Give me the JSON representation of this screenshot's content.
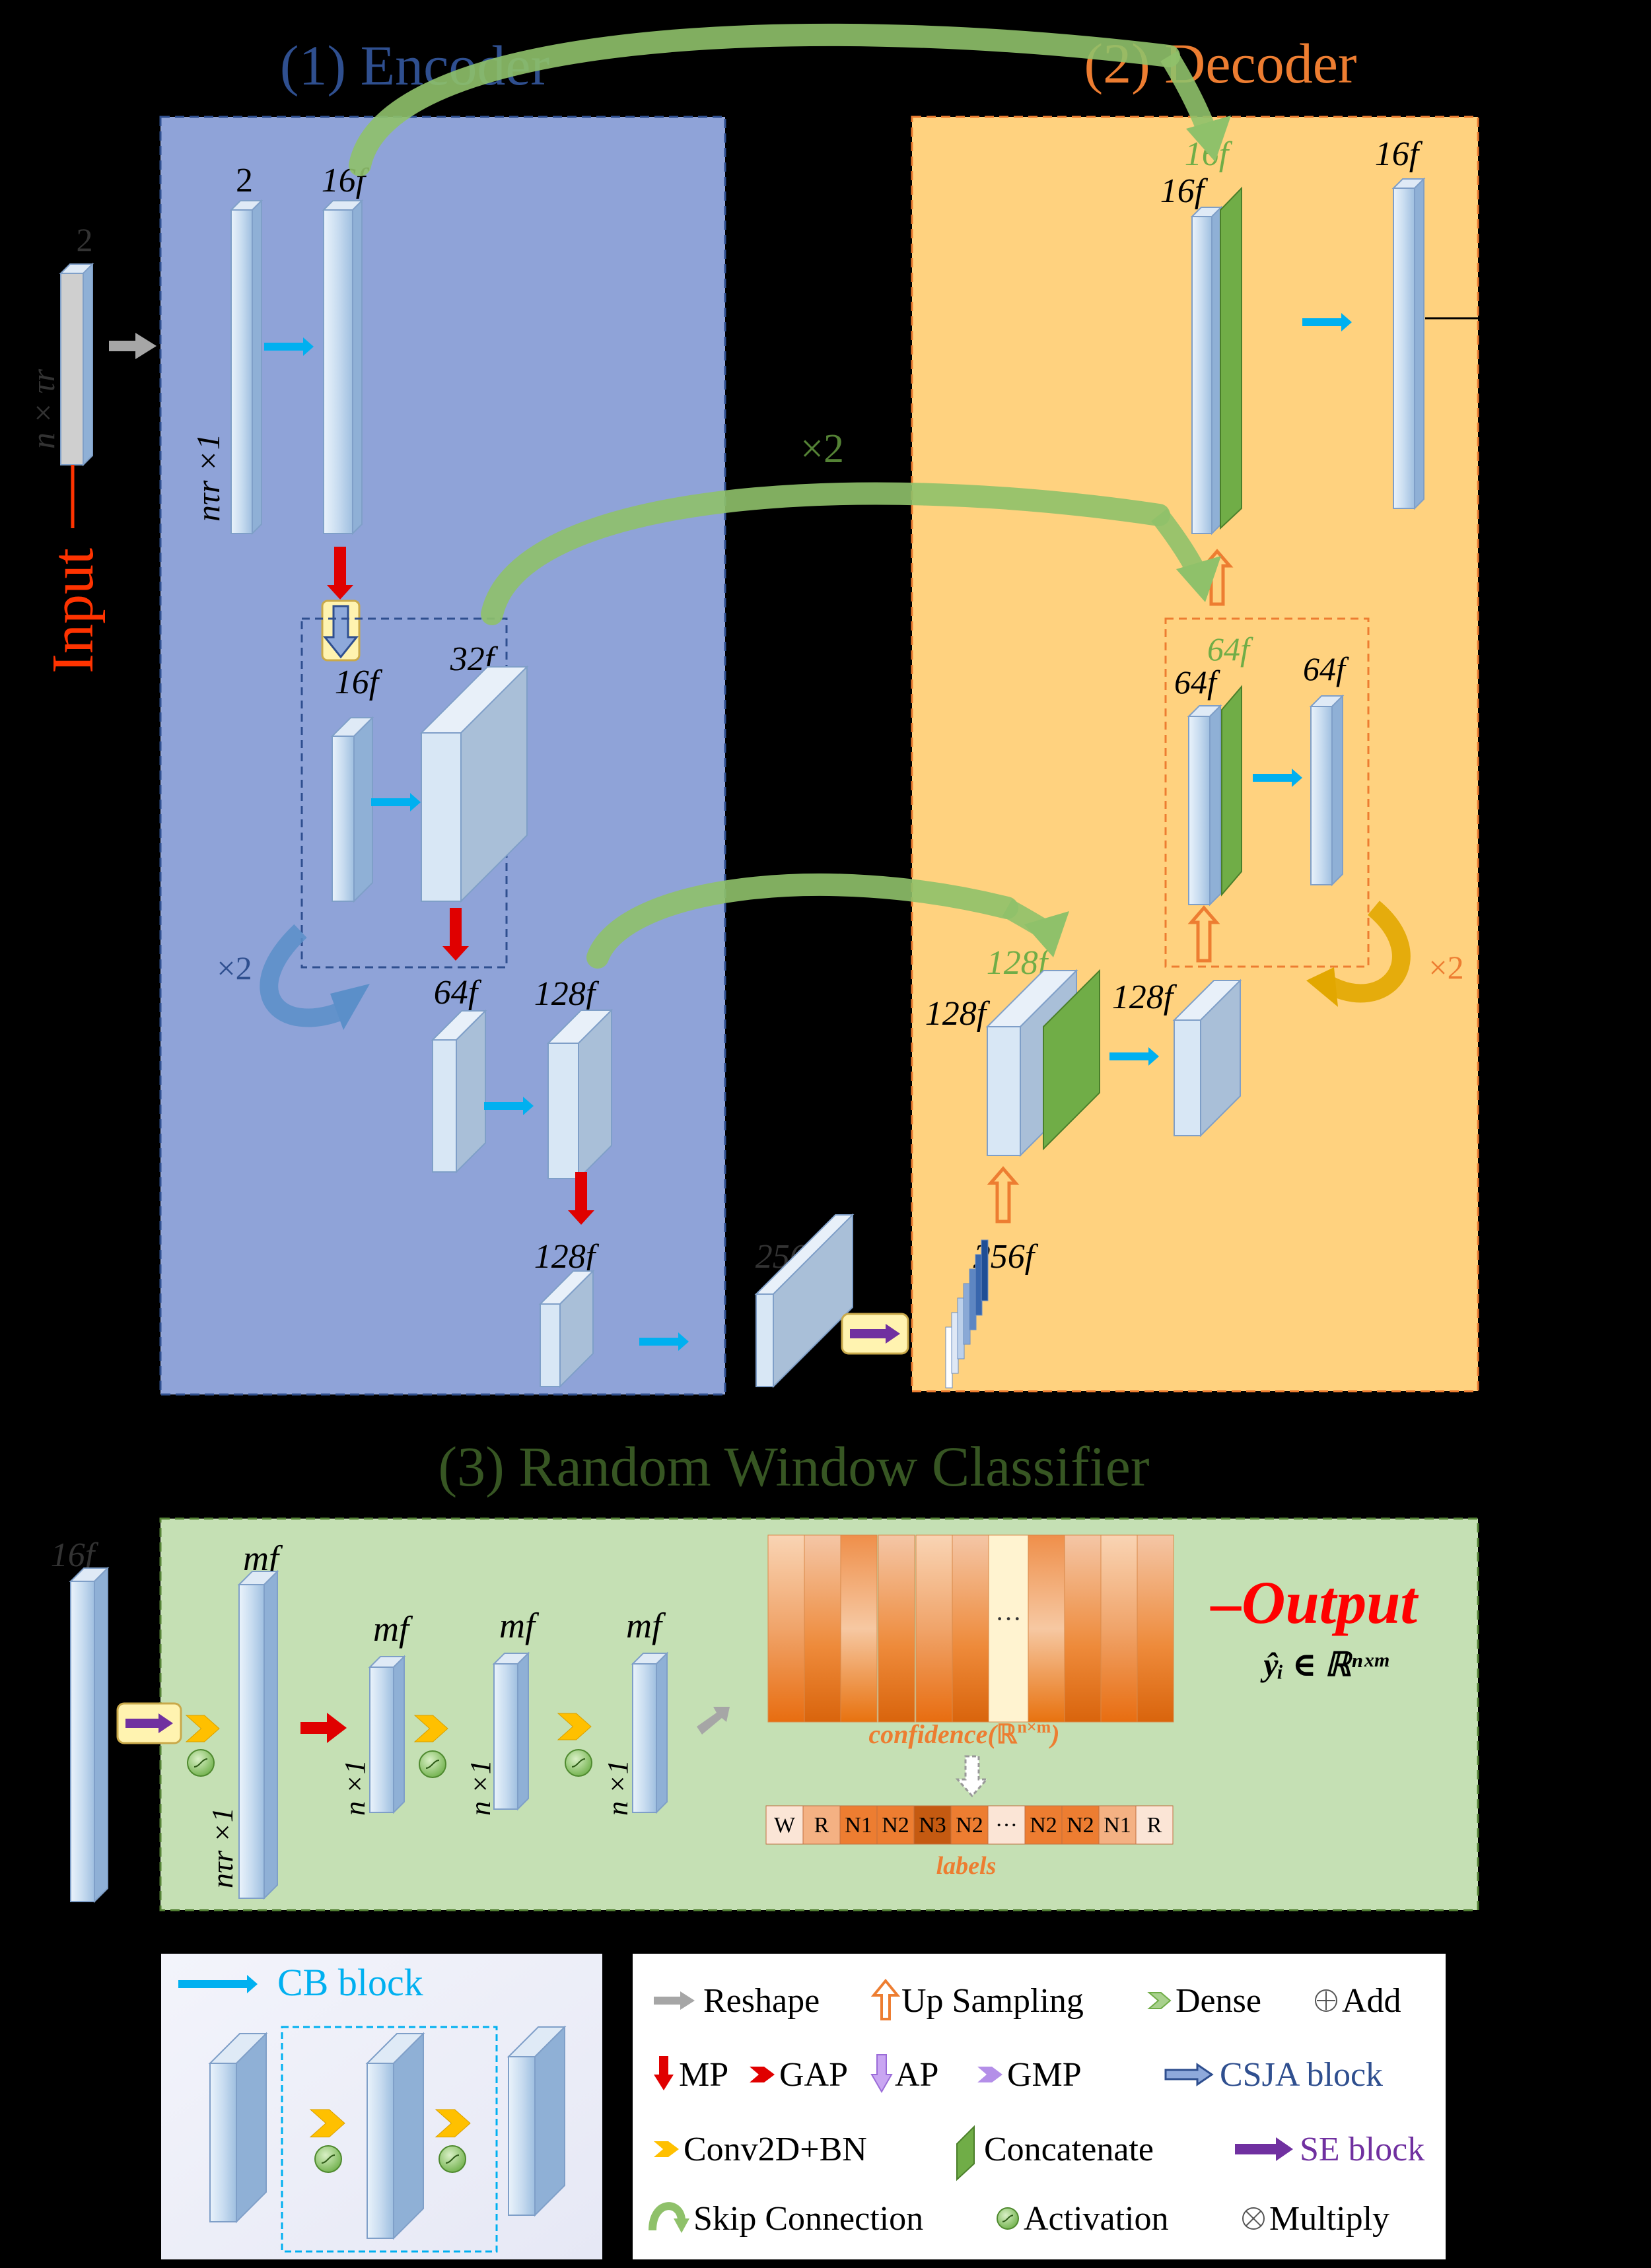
{
  "sections": {
    "encoder_title": "(1) Encoder",
    "decoder_title": "(2) Decoder",
    "classifier_title": "(3) Random Window Classifier"
  },
  "colors": {
    "encoder_bg": "#8fa3d8",
    "decoder_bg": "#ffd27f",
    "classifier_bg": "#c5e0b4",
    "encoder_title": "#2f4f8f",
    "decoder_title": "#ed7d31",
    "classifier_title": "#375623",
    "input_label": "#ff3300",
    "output_label": "#ff0000",
    "skip_arrow": "#8fc16a",
    "cb_arrow": "#00b0f0",
    "mp_arrow": "#e00000",
    "up_arrow": "#ed7d31",
    "se_arrow": "#7030a0",
    "concat": "#70ad47"
  },
  "input": {
    "label": "Input",
    "channels": "2",
    "shape": "n × τr"
  },
  "encoder": {
    "l1_ch": "2",
    "l1_shape": "nτr ×1",
    "l2_ch": "16f",
    "csja_in": "16f",
    "csja_out": "32f",
    "repeat": "×2",
    "l3_ch": "64f",
    "l3_out": "128f",
    "l4_ch": "128f",
    "bottleneck": "256f"
  },
  "decoder": {
    "skip_top": "16f",
    "up1_ch": "16f",
    "out1_ch": "16f",
    "skip_repeat": "×2",
    "skip_mid": "64f",
    "up2_ch": "64f",
    "out2_ch": "64f",
    "repeat": "×2",
    "skip_low": "128f",
    "up3_ch": "128f",
    "out3_ch": "128f",
    "se_out": "256f"
  },
  "classifier": {
    "input_ch": "16f",
    "b1_ch": "mf",
    "b1_shape": "nτr ×1",
    "b2_ch": "mf",
    "b3_ch": "mf",
    "b4_ch": "mf",
    "small_shape": "n ×1",
    "ellipsis": "···",
    "confidence_label": "confidence(ℝ^{n×m})",
    "confidence_text": "confidence(",
    "confidence_sup": "n×m",
    "labels_title": "labels",
    "labels": [
      "W",
      "R",
      "N1",
      "N2",
      "N3",
      "N2",
      "···",
      "N2",
      "N2",
      "N1",
      "R"
    ],
    "output_label": "–Output",
    "output_formula": "ŷᵢ ∈ ℝⁿˣᵐ"
  },
  "cb_panel": {
    "title": "CB block"
  },
  "legend": {
    "items": [
      {
        "name": "reshape",
        "label": "Reshape"
      },
      {
        "name": "up-sampling",
        "label": "Up Sampling"
      },
      {
        "name": "dense",
        "label": "Dense"
      },
      {
        "name": "add",
        "label": "Add"
      },
      {
        "name": "mp",
        "label": "MP"
      },
      {
        "name": "gap",
        "label": "GAP"
      },
      {
        "name": "ap",
        "label": "AP"
      },
      {
        "name": "gmp",
        "label": "GMP"
      },
      {
        "name": "csja",
        "label": "CSJA block"
      },
      {
        "name": "conv",
        "label": "Conv2D+BN"
      },
      {
        "name": "concat",
        "label": "Concatenate"
      },
      {
        "name": "se",
        "label": "SE block"
      },
      {
        "name": "skip",
        "label": "Skip Connection"
      },
      {
        "name": "activation",
        "label": "Activation"
      },
      {
        "name": "multiply",
        "label": "Multiply"
      }
    ]
  }
}
